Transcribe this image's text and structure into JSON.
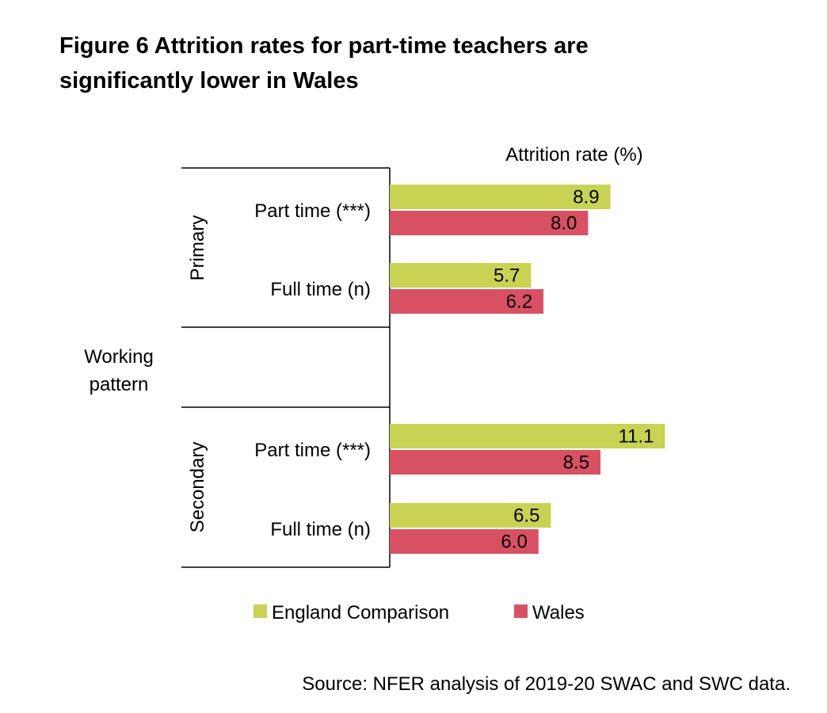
{
  "title": {
    "line1": "Figure 6 Attrition rates for part-time teachers are",
    "line2": "significantly lower in Wales"
  },
  "source": "Source: NFER analysis of 2019-20 SWAC and SWC data.",
  "chart_data": {
    "type": "bar",
    "orientation": "horizontal",
    "value_axis_title": "Attrition rate (%)",
    "category_axis_title": "Working pattern",
    "groups": [
      {
        "name": "Primary",
        "categories": [
          "Part time (***)",
          "Full time (n)"
        ]
      },
      {
        "name": "Secondary",
        "categories": [
          "Part time (***)",
          "Full time (n)"
        ]
      }
    ],
    "series": [
      {
        "name": "England Comparison",
        "color": "#c8d253",
        "values": [
          8.9,
          5.7,
          11.1,
          6.5
        ]
      },
      {
        "name": "Wales",
        "color": "#d85162",
        "values": [
          8.0,
          6.2,
          8.5,
          6.0
        ]
      }
    ],
    "value_labels": [
      [
        "8.9",
        "5.7",
        "11.1",
        "6.5"
      ],
      [
        "8.0",
        "6.2",
        "8.5",
        "6.0"
      ]
    ],
    "legend_position": "bottom",
    "grid": false
  }
}
